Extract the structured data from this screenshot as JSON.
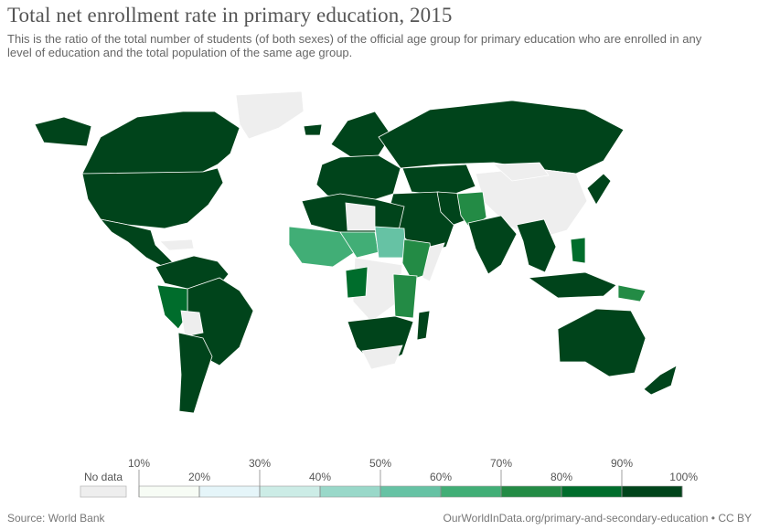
{
  "header": {
    "title": "Total net enrollment rate in primary education, 2015",
    "subtitle": "This is the ratio of the total number of students (of both sexes) of the official age group for primary education who are enrolled in any level of education and the total population of the same age group."
  },
  "colors": {
    "no_data": "#eeeeee",
    "ocean": "#ffffff",
    "border": "#ffffff",
    "scale": [
      "#f7fcf5",
      "#e5f5f9",
      "#ccece6",
      "#99d8c9",
      "#66c2a4",
      "#41ae76",
      "#238b45",
      "#006d2c",
      "#00441b"
    ]
  },
  "legend": {
    "no_data_label": "No data",
    "ticks": [
      "10%",
      "20%",
      "30%",
      "40%",
      "50%",
      "60%",
      "70%",
      "80%",
      "90%",
      "100%"
    ]
  },
  "footer": {
    "source": "Source: World Bank",
    "license": "OurWorldInData.org/primary-and-secondary-education • CC BY"
  }
}
